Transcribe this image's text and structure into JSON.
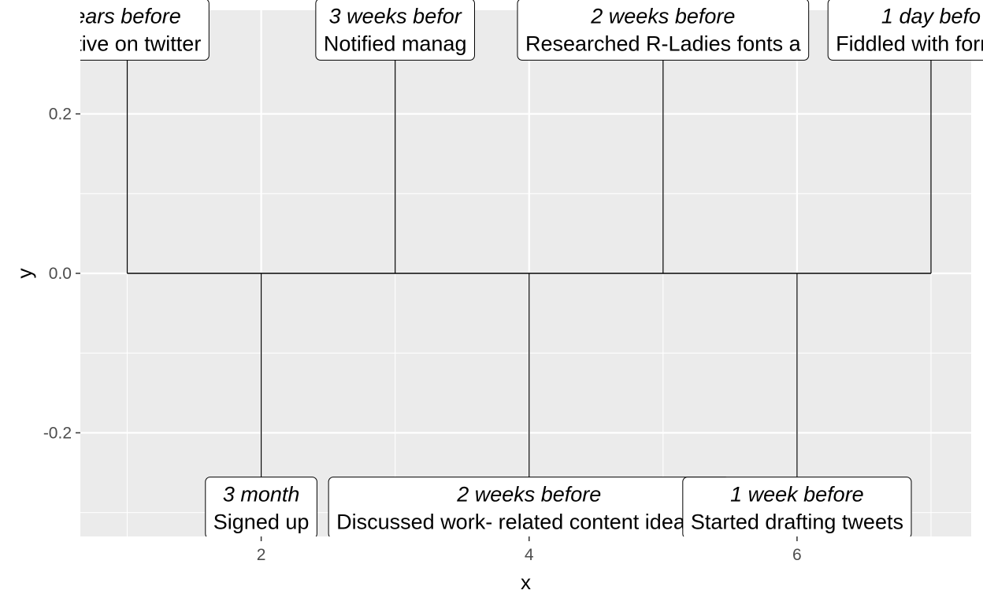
{
  "chart_data": {
    "type": "timeline",
    "title": "",
    "xlabel": "x",
    "ylabel": "y",
    "xlim": [
      0.65,
      7.3
    ],
    "ylim": [
      -0.33,
      0.33
    ],
    "x_ticks": [
      2,
      4,
      6
    ],
    "y_ticks": [
      0.2,
      0.0,
      -0.2
    ],
    "y_tick_labels": [
      "0.2",
      "0.0",
      "-0.2"
    ],
    "x_minor_gridlines": [
      1,
      3,
      5,
      7
    ],
    "y_minor_gridlines": [
      0.1,
      -0.1,
      -0.3
    ],
    "grid": true,
    "baseline_y": 0,
    "baseline_x_range": [
      1,
      7
    ],
    "events": [
      {
        "x": 1,
        "y": 0.3,
        "when": "ears before",
        "what": "active on twitter",
        "segment": [
          1,
          0.3
        ]
      },
      {
        "x": 2,
        "y": -0.3,
        "when": "3 month",
        "what": "Signed up",
        "segment": [
          2,
          -0.3
        ]
      },
      {
        "x": 3,
        "y": 0.3,
        "when": "3 weeks befor",
        "what": "Notified manag",
        "segment": [
          3,
          0.3
        ]
      },
      {
        "x": 4,
        "y": -0.3,
        "when": "2 weeks before",
        "what": "Discussed work- related content ideas wi",
        "segment": [
          4,
          -0.3
        ]
      },
      {
        "x": 5,
        "y": 0.3,
        "when": "2 weeks before",
        "what": "Researched R-Ladies fonts a",
        "segment": [
          5,
          0.3
        ]
      },
      {
        "x": 6,
        "y": -0.3,
        "when": "1 week before",
        "what": "Started drafting tweets",
        "segment": [
          6,
          -0.3
        ]
      },
      {
        "x": 7,
        "y": 0.3,
        "when": "1 day befo",
        "what": "Fiddled with formats",
        "segment": [
          7,
          0.3
        ]
      }
    ],
    "colors": {
      "panel": "#ebebeb",
      "grid_major": "#ffffff",
      "label_fill": "#ffffff",
      "line": "#000000",
      "tick_text": "#4d4d4d"
    }
  }
}
